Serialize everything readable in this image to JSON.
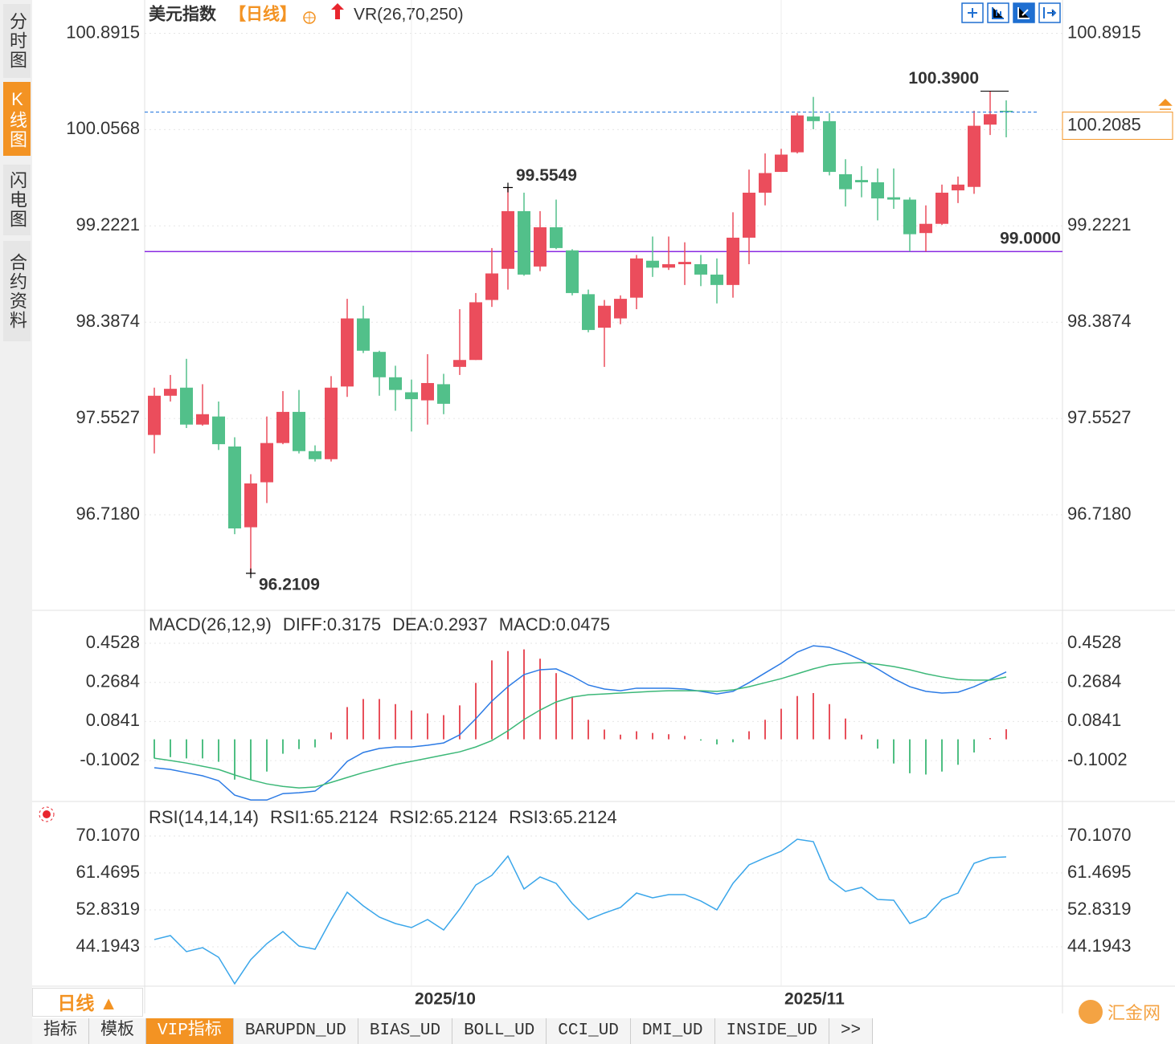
{
  "sidebar": [
    "分时图",
    "K线图",
    "闪电图",
    "合约资料"
  ],
  "header": {
    "symbol": "美元指数",
    "period": "【日线】",
    "indicator": "VR(26,70,250)"
  },
  "chart_data": [
    {
      "type": "candlestick",
      "categories": [
        null,
        null,
        null,
        null,
        null,
        null,
        null,
        null,
        null,
        null,
        null,
        null,
        null,
        null,
        null,
        null,
        "2025/10",
        null,
        null,
        null,
        null,
        null,
        null,
        null,
        null,
        null,
        null,
        null,
        null,
        null,
        null,
        null,
        null,
        null,
        null,
        null,
        null,
        null,
        null,
        "2025/11",
        null,
        null,
        null,
        null,
        null,
        null,
        null,
        null,
        null,
        null,
        null,
        null,
        null,
        null
      ],
      "open": [
        97.41,
        97.75,
        97.82,
        97.5,
        97.57,
        97.31,
        96.61,
        97.0,
        97.34,
        97.61,
        97.27,
        97.2,
        97.83,
        98.42,
        98.13,
        97.91,
        97.78,
        97.71,
        97.85,
        98.0,
        98.06,
        98.58,
        98.85,
        99.35,
        98.87,
        99.21,
        99.01,
        98.63,
        98.34,
        98.42,
        98.6,
        98.92,
        98.86,
        98.89,
        98.89,
        98.8,
        98.71,
        99.12,
        99.51,
        99.69,
        99.86,
        100.17,
        100.13,
        99.67,
        99.62,
        99.6,
        99.47,
        99.45,
        99.16,
        99.24,
        99.53,
        99.56,
        100.1,
        100.22
      ],
      "high": [
        97.82,
        97.93,
        98.07,
        97.85,
        97.7,
        97.39,
        97.07,
        97.57,
        97.79,
        97.8,
        97.32,
        97.92,
        98.59,
        98.53,
        98.14,
        98.01,
        97.89,
        98.11,
        97.94,
        98.5,
        98.64,
        99.03,
        99.5549,
        99.51,
        99.35,
        99.45,
        99.02,
        98.67,
        98.58,
        98.62,
        98.97,
        99.13,
        99.13,
        99.08,
        98.97,
        98.94,
        99.34,
        99.71,
        99.85,
        99.89,
        100.2,
        100.34,
        100.2,
        99.8,
        99.74,
        99.72,
        99.72,
        99.47,
        99.4,
        99.58,
        99.65,
        100.22,
        100.39,
        100.31
      ],
      "low": [
        97.25,
        97.7,
        97.47,
        97.49,
        97.28,
        96.55,
        96.2109,
        96.82,
        97.33,
        97.25,
        97.18,
        97.18,
        97.74,
        98.12,
        97.75,
        97.62,
        97.44,
        97.5,
        97.59,
        97.93,
        98.06,
        98.52,
        98.67,
        98.79,
        98.83,
        99.02,
        98.62,
        98.3,
        98.0,
        98.37,
        98.5,
        98.78,
        98.84,
        98.71,
        98.7,
        98.55,
        98.6,
        98.89,
        99.4,
        99.69,
        99.85,
        100.06,
        99.66,
        99.39,
        99.47,
        99.27,
        99.37,
        99.0,
        99.0,
        99.23,
        99.42,
        99.5,
        100.01,
        99.99
      ],
      "close": [
        97.75,
        97.81,
        97.5,
        97.59,
        97.33,
        96.6,
        96.99,
        97.34,
        97.61,
        97.27,
        97.2,
        97.82,
        98.42,
        98.14,
        97.91,
        97.8,
        97.72,
        97.86,
        97.68,
        98.06,
        98.56,
        98.81,
        99.35,
        98.8,
        99.21,
        99.03,
        98.64,
        98.32,
        98.53,
        98.59,
        98.94,
        98.86,
        98.89,
        98.91,
        98.8,
        98.71,
        99.12,
        99.51,
        99.68,
        99.84,
        100.18,
        100.13,
        99.69,
        99.54,
        99.6,
        99.46,
        99.45,
        99.15,
        99.24,
        99.51,
        99.58,
        100.09,
        100.19,
        100.2085
      ],
      "up_color": "#eb4d5c",
      "down_color": "#52c08a",
      "ylim": [
        95.89,
        101.18
      ],
      "yticks": [
        {
          "value": 96.718,
          "label": "96.7180"
        },
        97.5527,
        98.3874,
        99.2221,
        100.0568,
        100.8915
      ],
      "high_marks": [
        {
          "index": 22,
          "label": "99.5549"
        },
        {
          "index": 52,
          "label": "100.3900"
        }
      ],
      "low_marks": [
        {
          "index": 6,
          "label": "96.2109"
        }
      ],
      "hline": {
        "value": 99,
        "label": "99.0000",
        "color": "#8a2be2"
      },
      "last_color": "#2f7ee0",
      "last_box_color": "#f39323"
    },
    {
      "type": "macd",
      "title": "MACD(26,12,9)",
      "series": [
        {
          "name": "DIFF:0.3175",
          "color": "#2c7be5",
          "values": [
            -0.134,
            -0.142,
            -0.157,
            -0.172,
            -0.195,
            -0.263,
            -0.286,
            -0.286,
            -0.256,
            -0.252,
            -0.244,
            -0.187,
            -0.104,
            -0.062,
            -0.043,
            -0.036,
            -0.036,
            -0.028,
            -0.017,
            0.021,
            0.097,
            0.18,
            0.248,
            0.305,
            0.328,
            0.332,
            0.298,
            0.256,
            0.237,
            0.229,
            0.241,
            0.241,
            0.241,
            0.237,
            0.226,
            0.214,
            0.226,
            0.267,
            0.313,
            0.358,
            0.411,
            0.441,
            0.434,
            0.407,
            0.373,
            0.332,
            0.286,
            0.248,
            0.226,
            0.218,
            0.222,
            0.248,
            0.282,
            0.3175
          ]
        },
        {
          "name": "DEA:0.2937",
          "color": "#3cb878",
          "values": [
            -0.089,
            -0.1,
            -0.112,
            -0.127,
            -0.142,
            -0.168,
            -0.191,
            -0.21,
            -0.222,
            -0.229,
            -0.225,
            -0.203,
            -0.18,
            -0.157,
            -0.138,
            -0.119,
            -0.104,
            -0.089,
            -0.074,
            -0.059,
            -0.036,
            -0.006,
            0.04,
            0.093,
            0.138,
            0.176,
            0.199,
            0.21,
            0.214,
            0.218,
            0.222,
            0.226,
            0.229,
            0.229,
            0.229,
            0.226,
            0.233,
            0.248,
            0.267,
            0.286,
            0.309,
            0.332,
            0.351,
            0.358,
            0.362,
            0.354,
            0.343,
            0.328,
            0.309,
            0.294,
            0.282,
            0.279,
            0.279,
            0.2937
          ]
        }
      ],
      "histogram": {
        "name": "MACD:0.0475",
        "color": "#4cb7ea",
        "up_color": "#e8505b",
        "down_color": "#4fbf83",
        "values": [
          -0.09,
          -0.084,
          -0.09,
          -0.09,
          -0.106,
          -0.19,
          -0.19,
          -0.152,
          -0.068,
          -0.046,
          -0.038,
          0.032,
          0.152,
          0.19,
          0.19,
          0.166,
          0.136,
          0.122,
          0.114,
          0.16,
          0.266,
          0.372,
          0.416,
          0.424,
          0.38,
          0.312,
          0.198,
          0.092,
          0.046,
          0.022,
          0.038,
          0.03,
          0.024,
          0.016,
          -0.006,
          -0.024,
          -0.014,
          0.038,
          0.092,
          0.144,
          0.204,
          0.218,
          0.166,
          0.098,
          0.022,
          -0.044,
          -0.114,
          -0.16,
          -0.166,
          -0.152,
          -0.12,
          -0.062,
          0.006,
          0.0475
        ]
      },
      "ylim": [
        -0.293,
        0.608
      ],
      "yticks": [
        -0.1002,
        0.0841,
        0.2684,
        0.4528
      ]
    },
    {
      "type": "line",
      "title": "RSI(14,14,14)",
      "legend": [
        {
          "label": "RSI1:65.2124",
          "color": "#4a90e2"
        },
        {
          "label": "RSI2:65.2124",
          "color": "#4cc28a"
        },
        {
          "label": "RSI3:65.2124",
          "color": "#3aa6ea"
        }
      ],
      "color": "#3aa6ea",
      "values": [
        45.89,
        46.82,
        43.07,
        44.0,
        41.75,
        35.56,
        41.19,
        44.94,
        47.76,
        44.38,
        43.63,
        50.58,
        56.96,
        53.77,
        51.14,
        49.64,
        48.7,
        50.58,
        48.13,
        53.02,
        58.65,
        60.91,
        65.41,
        57.72,
        60.53,
        59.03,
        54.33,
        50.58,
        52.08,
        53.4,
        56.77,
        55.65,
        56.4,
        56.4,
        54.9,
        52.83,
        59.03,
        63.35,
        65.03,
        66.53,
        69.35,
        68.79,
        59.97,
        57.15,
        58.09,
        55.27,
        55.09,
        49.64,
        51.14,
        55.27,
        56.77,
        63.72,
        65.03,
        65.2124
      ],
      "ylim": [
        34.99,
        78.18
      ],
      "yticks": [
        44.1943,
        52.8319,
        61.4695,
        {
          "value": 70.107,
          "label": "70.1070"
        }
      ]
    }
  ],
  "period_button": "日线 ▲",
  "tabs": [
    "指标",
    "模板",
    "VIP指标",
    "BARUPDN_UD",
    "BIAS_UD",
    "BOLL_UD",
    "CCI_UD",
    "DMI_UD",
    "INSIDE_UD",
    ">>"
  ],
  "logo": "汇金网"
}
